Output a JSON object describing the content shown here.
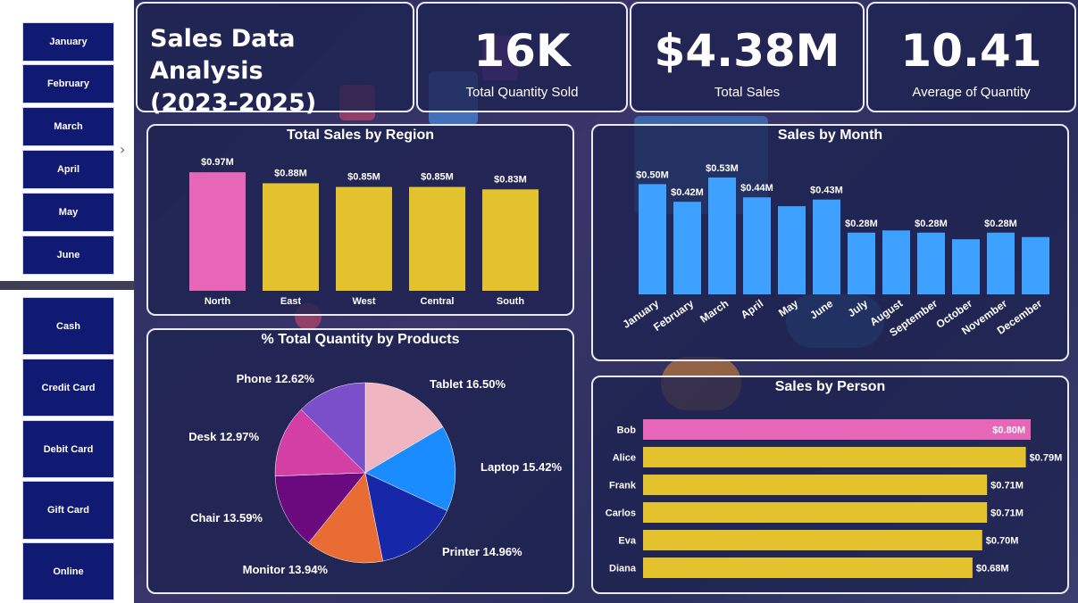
{
  "slicers": {
    "months": [
      "January",
      "February",
      "March",
      "April",
      "May",
      "June"
    ],
    "payments": [
      "Cash",
      "Credit Card",
      "Debit Card",
      "Gift Card",
      "Online"
    ]
  },
  "header": {
    "title_line1": "Sales Data Analysis",
    "title_line2": "(2023-2025)"
  },
  "kpis": [
    {
      "value": "16K",
      "label": "Total Quantity Sold"
    },
    {
      "value": "$4.38M",
      "label": "Total Sales"
    },
    {
      "value": "10.41",
      "label": "Average of Quantity"
    }
  ],
  "colors": {
    "pink": "#e766b8",
    "yellow": "#e3c22e",
    "blue": "#3ea0ff",
    "card_border": "#e9eaf5"
  },
  "chart_data": [
    {
      "type": "bar",
      "title": "Total Sales by Region",
      "categories": [
        "North",
        "East",
        "West",
        "Central",
        "South"
      ],
      "values": [
        0.97,
        0.88,
        0.85,
        0.85,
        0.83
      ],
      "labels": [
        "$0.97M",
        "$0.88M",
        "$0.85M",
        "$0.85M",
        "$0.83M"
      ],
      "ylim": [
        0,
        1.0
      ]
    },
    {
      "type": "bar",
      "title": "Sales by Month",
      "categories": [
        "January",
        "February",
        "March",
        "April",
        "May",
        "June",
        "July",
        "August",
        "September",
        "October",
        "November",
        "December"
      ],
      "values": [
        0.5,
        0.42,
        0.53,
        0.44,
        0.4,
        0.43,
        0.28,
        0.29,
        0.28,
        0.25,
        0.28,
        0.26
      ],
      "labels": [
        "$0.50M",
        "$0.42M",
        "$0.53M",
        "$0.44M",
        "",
        "$0.43M",
        "$0.28M",
        "",
        "$0.28M",
        "",
        "$0.28M",
        ""
      ],
      "ylim": [
        0,
        0.55
      ]
    },
    {
      "type": "pie",
      "title": "% Total Quantity by Products",
      "categories": [
        "Tablet",
        "Laptop",
        "Printer",
        "Monitor",
        "Chair",
        "Desk",
        "Phone"
      ],
      "values": [
        16.5,
        15.42,
        14.96,
        13.94,
        13.59,
        12.97,
        12.62
      ],
      "labels": [
        "Tablet 16.50%",
        "Laptop 15.42%",
        "Printer 14.96%",
        "Monitor 13.94%",
        "Chair 13.59%",
        "Desk 12.97%",
        "Phone 12.62%"
      ],
      "colors": [
        "#efb5c1",
        "#1a8cff",
        "#1627a8",
        "#e86c33",
        "#6b0a7e",
        "#d33fa5",
        "#7b4fc9"
      ]
    },
    {
      "type": "bar",
      "orientation": "horizontal",
      "title": "Sales by Person",
      "categories": [
        "Bob",
        "Alice",
        "Frank",
        "Carlos",
        "Eva",
        "Diana"
      ],
      "values": [
        0.8,
        0.79,
        0.71,
        0.71,
        0.7,
        0.68
      ],
      "labels": [
        "$0.80M",
        "$0.79M",
        "$0.71M",
        "$0.71M",
        "$0.70M",
        "$0.68M"
      ]
    }
  ]
}
